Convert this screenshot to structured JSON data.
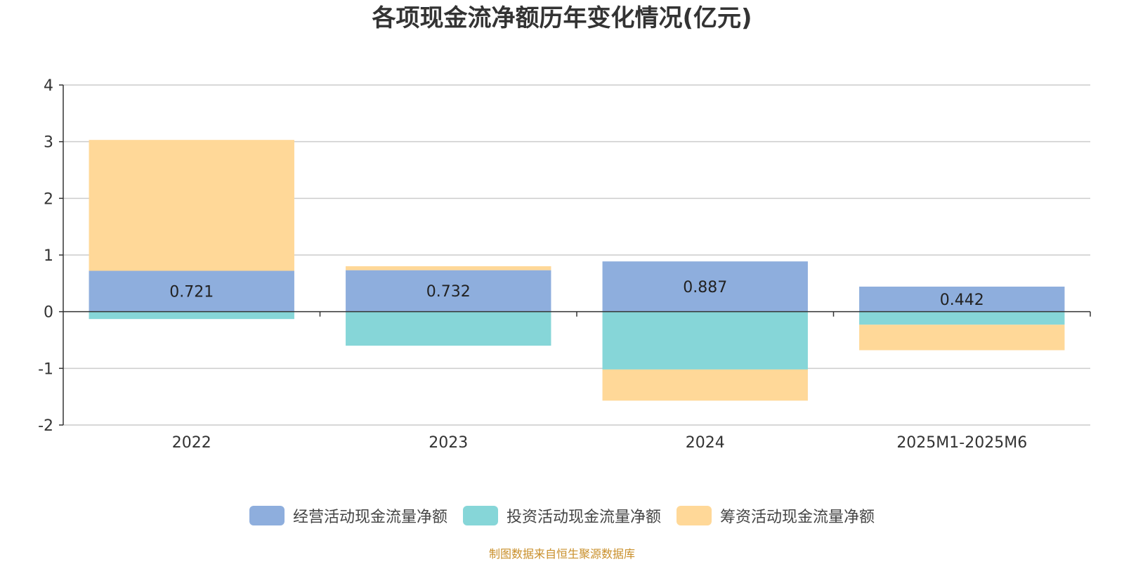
{
  "chart_data": {
    "type": "bar",
    "stacked": true,
    "title": "各项现金流净额历年变化情况(亿元)",
    "categories": [
      "2022",
      "2023",
      "2024",
      "2025M1-2025M6"
    ],
    "series": [
      {
        "name": "经营活动现金流量净额",
        "values": [
          0.721,
          0.732,
          0.887,
          0.442
        ],
        "color": "#8eaedd"
      },
      {
        "name": "投资活动现金流量净额",
        "values": [
          -0.13,
          -0.6,
          -1.02,
          -0.23
        ],
        "color": "#86d6d8"
      },
      {
        "name": "筹资活动现金流量净额",
        "values": [
          2.31,
          0.07,
          -0.55,
          -0.45
        ],
        "color": "#ffd898"
      }
    ],
    "data_labels": [
      "0.721",
      "0.732",
      "0.887",
      "0.442"
    ],
    "ylim": [
      -2,
      4
    ],
    "yticks": [
      -2,
      -1,
      0,
      1,
      2,
      3,
      4
    ],
    "grid": true,
    "legend_position": "bottom"
  },
  "source_note": "制图数据来自恒生聚源数据库"
}
